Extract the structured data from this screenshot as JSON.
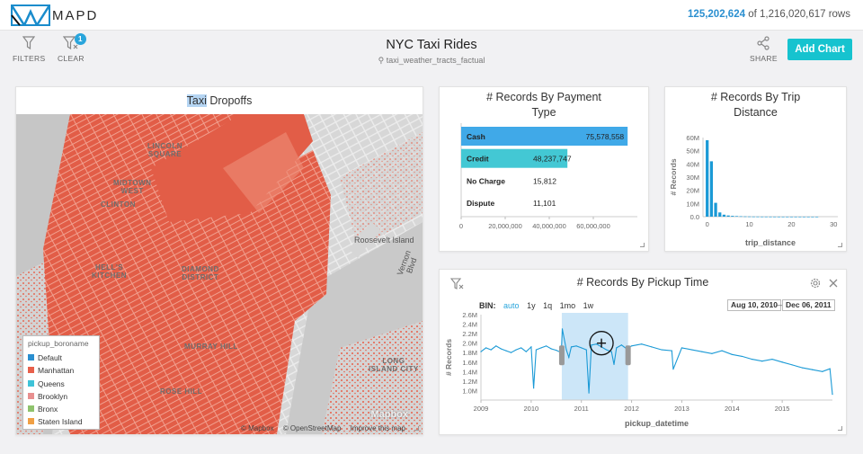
{
  "app": {
    "logo_text": "MAPD",
    "rows_filtered": "125,202,624",
    "rows_total": "of 1,216,020,617 rows"
  },
  "toolbar": {
    "filters_label": "FILTERS",
    "clear_label": "CLEAR",
    "clear_badge": "1",
    "title": "NYC Taxi Rides",
    "subtitle": "taxi_weather_tracts_factual",
    "share_label": "SHARE",
    "add_chart_label": "Add Chart"
  },
  "map": {
    "title_highlight": "Taxi",
    "title_rest": " Dropoffs",
    "legend_title": "pickup_boroname",
    "legend": [
      {
        "label": "Default",
        "color": "#2a8fd0"
      },
      {
        "label": "Manhattan",
        "color": "#e8604b"
      },
      {
        "label": "Queens",
        "color": "#3ec3d8"
      },
      {
        "label": "Brooklyn",
        "color": "#e88f8f"
      },
      {
        "label": "Bronx",
        "color": "#8fc36d"
      },
      {
        "label": "Staten Island",
        "color": "#f0a045"
      }
    ],
    "labels": {
      "lincoln_square": "LINCOLN\nSQUARE",
      "midtown_west": "MIDTOWN\nWEST",
      "clinton": "CLINTON",
      "hells_kitchen": "HELL'S\nKITCHEN",
      "diamond_district": "DIAMOND\nDISTRICT",
      "murray_hill": "MURRAY HILL",
      "rose_hill": "ROSE HILL",
      "roosevelt_island": "Roosevelt Island",
      "long_island_city": "LONG\nISLAND CITY",
      "vernon_blvd": "Vernon Blvd"
    },
    "attribution": [
      "© Mapbox",
      "© OpenStreetMap",
      "Improve this map"
    ],
    "watermark": "Mapbox"
  },
  "payment_chart": {
    "title": "# Records By Payment Type",
    "chart_data": {
      "type": "bar",
      "orientation": "horizontal",
      "categories": [
        "Cash",
        "Credit",
        "No Charge",
        "Dispute"
      ],
      "values": [
        75578558,
        48237747,
        15812,
        11101
      ],
      "value_labels": [
        "75,578,558",
        "48,237,747",
        "15,812",
        "11,101"
      ],
      "colors": [
        "#40a9e8",
        "#43c8d4",
        "#ffffff",
        "#ffffff"
      ],
      "xlim": [
        0,
        80000000
      ],
      "xticks": [
        0,
        20000000,
        40000000,
        60000000
      ],
      "xtick_labels": [
        "0",
        "20,000,000",
        "40,000,000",
        "60,000,000"
      ]
    }
  },
  "distance_chart": {
    "title": "# Records By Trip Distance",
    "chart_data": {
      "type": "bar",
      "xlabel": "trip_distance",
      "ylabel": "# Records",
      "xlim": [
        -1,
        31
      ],
      "ylim": [
        0,
        60000000
      ],
      "xticks": [
        0,
        10,
        20,
        30
      ],
      "yticks": [
        0,
        10000000,
        20000000,
        30000000,
        40000000,
        50000000,
        60000000
      ],
      "ytick_labels": [
        "0.0",
        "10M",
        "20M",
        "30M",
        "40M",
        "50M",
        "60M"
      ],
      "bar_width": 0.7,
      "x": [
        0,
        1,
        2,
        3,
        4,
        5,
        6,
        7,
        8,
        9,
        10,
        11,
        12,
        13,
        14,
        15,
        16,
        17,
        18,
        19,
        20,
        21,
        22,
        23,
        24,
        25,
        26
      ],
      "values": [
        58000000,
        42000000,
        10500000,
        3200000,
        1500000,
        900000,
        600000,
        450000,
        300000,
        200000,
        150000,
        100000,
        80000,
        60000,
        50000,
        40000,
        30000,
        25000,
        20000,
        15000,
        12000,
        10000,
        8000,
        6000,
        5000,
        4000,
        3000
      ]
    }
  },
  "time_chart": {
    "title": "# Records By Pickup Time",
    "bin_label": "BIN:",
    "bin_options": [
      "auto",
      "1y",
      "1q",
      "1mo",
      "1w"
    ],
    "bin_active": "auto",
    "date_from": "Aug 10, 2010",
    "date_sep": "—",
    "date_to": "Dec 06, 2011",
    "chart_data": {
      "type": "line",
      "xlabel": "pickup_datetime",
      "ylabel": "# Records",
      "xlim": [
        2009.0,
        2016.0
      ],
      "ylim": [
        0.8,
        2.6
      ],
      "yunit": "M",
      "xticks": [
        2009,
        2010,
        2011,
        2012,
        2013,
        2014,
        2015
      ],
      "yticks": [
        1.0,
        1.2,
        1.4,
        1.6,
        1.8,
        2.0,
        2.2,
        2.4,
        2.6
      ],
      "ytick_labels": [
        "1.0M",
        "1.2M",
        "1.4M",
        "1.6M",
        "1.8M",
        "2.0M",
        "2.2M",
        "2.4M",
        "2.6M"
      ],
      "brush": [
        2010.61,
        2011.93
      ],
      "series": [
        {
          "color": "#1b9ad6",
          "x": [
            2009.0,
            2009.1,
            2009.2,
            2009.3,
            2009.4,
            2009.5,
            2009.6,
            2009.7,
            2009.8,
            2009.9,
            2010.0,
            2010.05,
            2010.1,
            2010.2,
            2010.3,
            2010.4,
            2010.5,
            2010.6,
            2010.62,
            2010.7,
            2010.75,
            2010.8,
            2010.9,
            2011.0,
            2011.1,
            2011.15,
            2011.2,
            2011.3,
            2011.4,
            2011.5,
            2011.6,
            2011.65,
            2011.7,
            2011.8,
            2011.9,
            2012.0,
            2012.2,
            2012.4,
            2012.6,
            2012.8,
            2012.83,
            2013.0,
            2013.2,
            2013.4,
            2013.6,
            2013.8,
            2014.0,
            2014.2,
            2014.4,
            2014.6,
            2014.8,
            2015.0,
            2015.2,
            2015.4,
            2015.6,
            2015.8,
            2015.95,
            2016.0
          ],
          "values": [
            1.82,
            1.9,
            1.86,
            1.94,
            1.88,
            1.84,
            1.8,
            1.86,
            1.9,
            1.82,
            1.92,
            1.05,
            1.86,
            1.9,
            1.94,
            1.88,
            1.85,
            1.8,
            2.3,
            1.86,
            1.7,
            1.92,
            1.94,
            1.9,
            1.86,
            0.95,
            1.96,
            1.98,
            1.92,
            1.86,
            1.82,
            1.55,
            1.9,
            1.96,
            1.88,
            1.94,
            1.98,
            1.92,
            1.86,
            1.84,
            1.45,
            1.9,
            1.86,
            1.82,
            1.78,
            1.84,
            1.76,
            1.72,
            1.66,
            1.62,
            1.66,
            1.6,
            1.54,
            1.48,
            1.44,
            1.4,
            1.46,
            0.92
          ]
        }
      ]
    }
  }
}
